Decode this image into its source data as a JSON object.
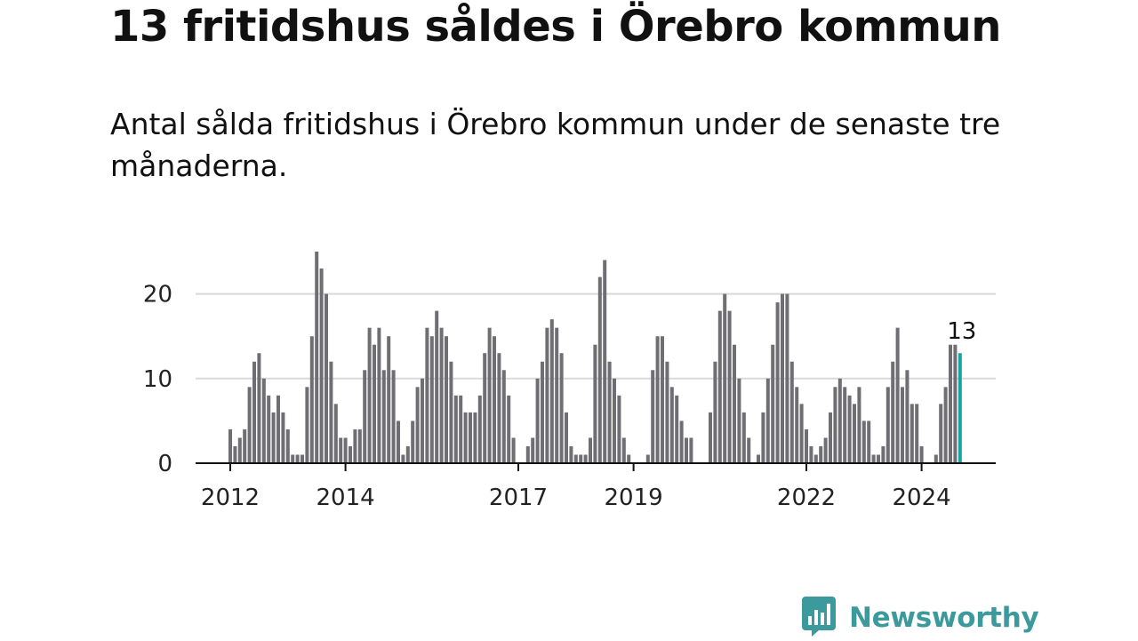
{
  "header": {
    "title": "13 fritidshus såldes i Örebro kommun",
    "subtitle": "Antal sålda fritidshus i Örebro kommun under de senaste tre månaderna."
  },
  "brand": {
    "name": "Newsworthy",
    "logo_icon": "bar-chart-speech-bubble-icon",
    "color": "#3d9a9c"
  },
  "colors": {
    "bar": "#6f6e73",
    "highlight": "#1aa2a0",
    "grid": "#d9d9d9",
    "axis": "#111111"
  },
  "chart_data": {
    "type": "bar",
    "title": "13 fritidshus såldes i Örebro kommun",
    "subtitle": "Antal sålda fritidshus i Örebro kommun under de senaste tre månaderna.",
    "xlabel": "",
    "ylabel": "",
    "ylim": [
      0,
      25
    ],
    "yticks": [
      0,
      10,
      20
    ],
    "grid": true,
    "legend": "none",
    "x_unit": "month",
    "x_start": "2012-01",
    "xtick_labels": [
      "2012",
      "2014",
      "2017",
      "2019",
      "2022",
      "2024"
    ],
    "highlight_label": "13",
    "values": [
      4,
      2,
      3,
      4,
      9,
      12,
      13,
      10,
      8,
      6,
      8,
      6,
      4,
      1,
      1,
      1,
      9,
      15,
      25,
      23,
      20,
      12,
      7,
      3,
      3,
      2,
      4,
      4,
      11,
      16,
      14,
      16,
      11,
      15,
      11,
      5,
      1,
      2,
      5,
      9,
      10,
      16,
      15,
      18,
      16,
      15,
      12,
      8,
      8,
      6,
      6,
      6,
      8,
      13,
      16,
      15,
      13,
      11,
      8,
      3,
      0,
      0,
      2,
      3,
      10,
      12,
      16,
      17,
      16,
      13,
      6,
      2,
      1,
      1,
      1,
      3,
      14,
      22,
      24,
      12,
      10,
      8,
      3,
      1,
      0,
      0,
      0,
      1,
      11,
      15,
      15,
      12,
      9,
      8,
      5,
      3,
      3,
      0,
      0,
      0,
      6,
      12,
      18,
      20,
      18,
      14,
      10,
      6,
      3,
      0,
      1,
      6,
      10,
      14,
      19,
      20,
      20,
      12,
      9,
      7,
      4,
      2,
      1,
      2,
      3,
      6,
      9,
      10,
      9,
      8,
      7,
      9,
      5,
      5,
      1,
      1,
      2,
      9,
      12,
      16,
      9,
      11,
      7,
      7,
      2,
      0,
      0,
      1,
      7,
      9,
      14,
      14,
      13
    ]
  }
}
